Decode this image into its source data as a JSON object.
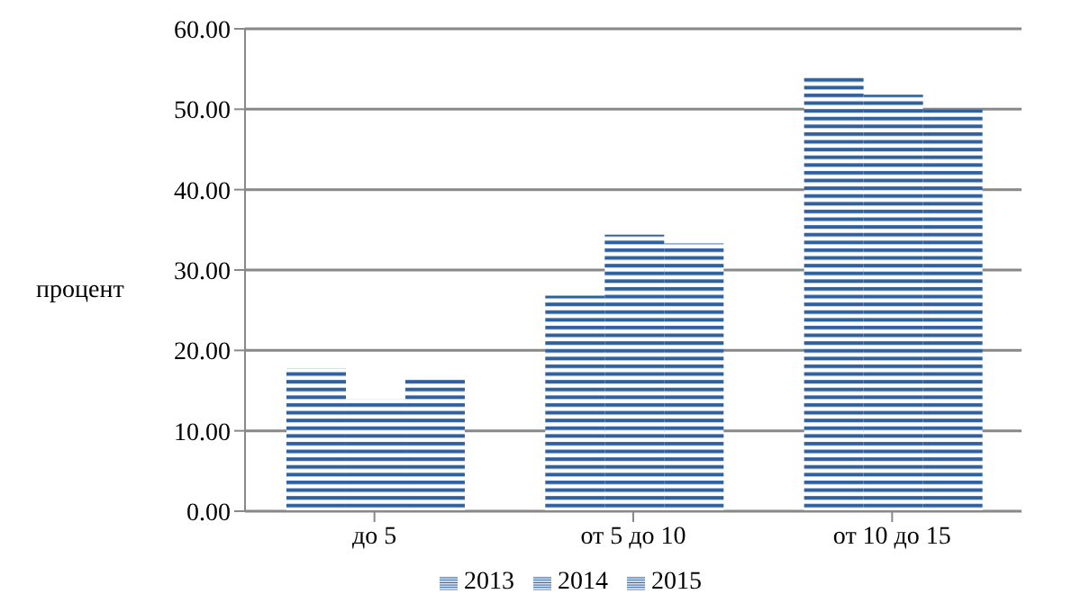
{
  "chart_data": {
    "type": "bar",
    "ylabel": "процент",
    "categories": [
      "до 5",
      "от 5 до 10",
      "от 10 до 15"
    ],
    "series": [
      {
        "name": "2013",
        "color": "#2e5f9e",
        "values": [
          17.8,
          26.8,
          54.1
        ]
      },
      {
        "name": "2014",
        "color": "#2e5f9e",
        "values": [
          13.9,
          34.4,
          51.8
        ]
      },
      {
        "name": "2015",
        "color": "#2e5f9e",
        "values": [
          16.6,
          33.3,
          50.0
        ]
      }
    ],
    "ylim": [
      0,
      60
    ],
    "yticks": [
      {
        "value": 0,
        "label": "0.00"
      },
      {
        "value": 10,
        "label": "10.00"
      },
      {
        "value": 20,
        "label": "20.00"
      },
      {
        "value": 30,
        "label": "30.00"
      },
      {
        "value": 40,
        "label": "40.00"
      },
      {
        "value": 50,
        "label": "50.00"
      },
      {
        "value": 60,
        "label": "60.00"
      }
    ],
    "grid": "y",
    "legend": "bottom"
  }
}
